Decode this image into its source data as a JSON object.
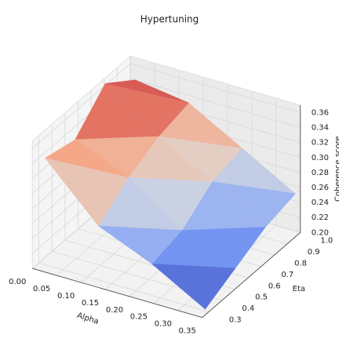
{
  "chart_data": {
    "type": "surface3d",
    "title": "Hypertuning",
    "x_label": "Alpha",
    "y_label": "Eta",
    "z_label": "Coherence score",
    "colormap": "coolwarm",
    "x": [
      0.01,
      0.12,
      0.23,
      0.34
    ],
    "y": [
      0.31,
      0.54,
      0.77,
      1.0
    ],
    "z": [
      [
        0.34,
        0.27,
        0.24,
        0.2
      ],
      [
        0.33,
        0.3,
        0.25,
        0.22
      ],
      [
        0.37,
        0.32,
        0.28,
        0.24
      ],
      [
        0.34,
        0.33,
        0.29,
        0.25
      ]
    ],
    "xlim": [
      0.0,
      0.35
    ],
    "ylim": [
      0.25,
      1.0
    ],
    "zlim": [
      0.2,
      0.37
    ],
    "xticks": [
      {
        "value": 0.0,
        "label": "0.00"
      },
      0.05,
      {
        "value": 0.1,
        "label": "0.10"
      },
      0.15,
      {
        "value": 0.2,
        "label": "0.20"
      },
      0.25,
      {
        "value": 0.3,
        "label": "0.30"
      },
      0.35
    ],
    "yticks": [
      0.3,
      0.4,
      0.5,
      0.6,
      0.7,
      0.8,
      0.9,
      {
        "value": 1.0,
        "label": "1.0"
      }
    ],
    "zticks": [
      {
        "value": 0.2,
        "label": "0.20"
      },
      0.22,
      0.24,
      0.26,
      0.28,
      {
        "value": 0.3,
        "label": "0.30"
      },
      0.32,
      0.34,
      0.36
    ],
    "grid": true
  }
}
